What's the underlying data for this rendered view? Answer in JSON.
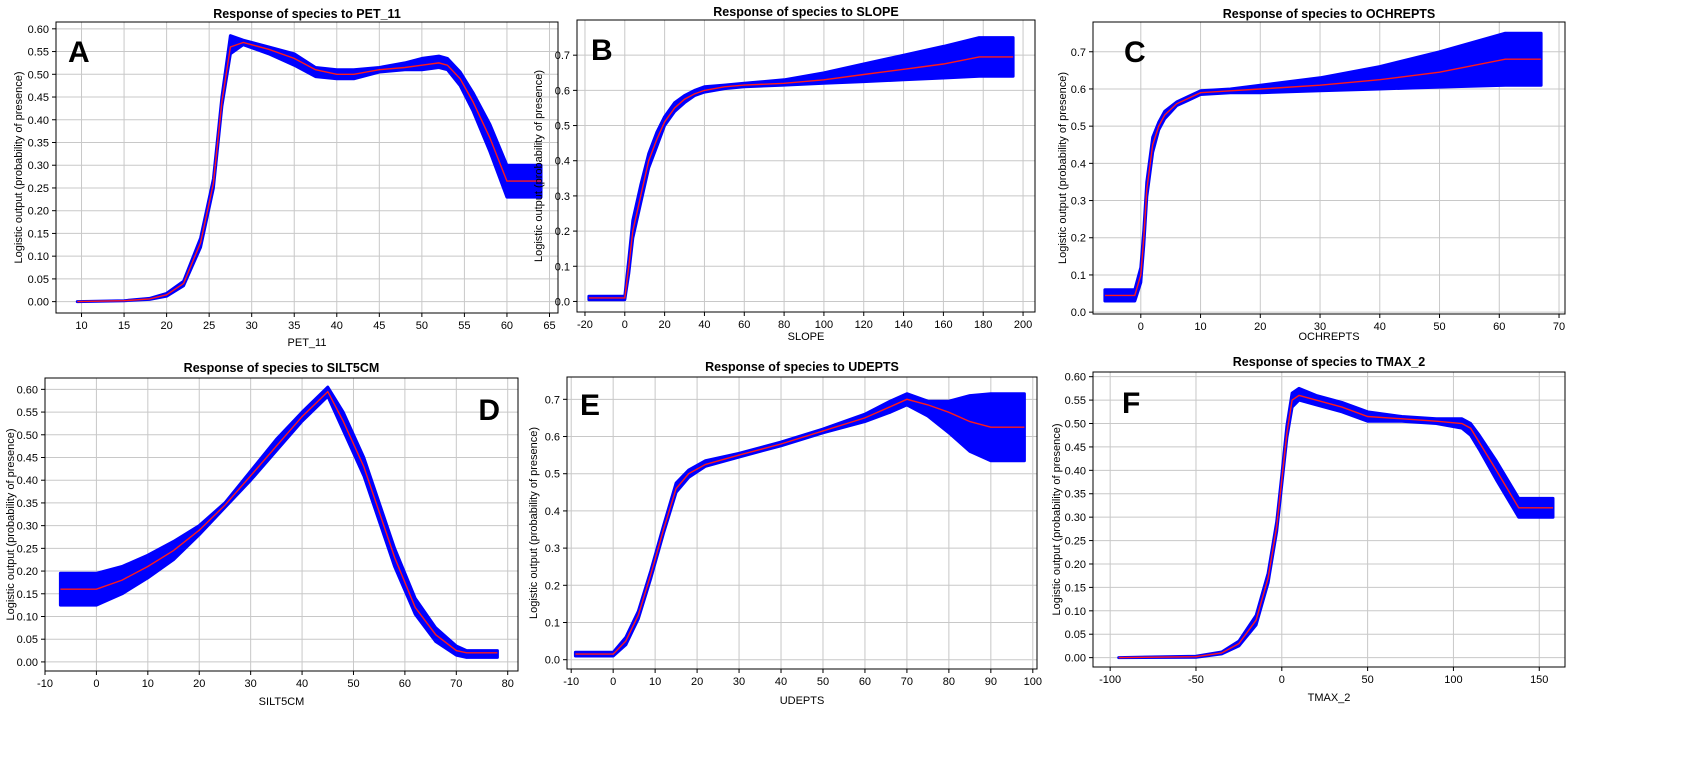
{
  "colors": {
    "band": "#0000ff",
    "mean": "#ff1a1a",
    "grid": "#c8c8c8",
    "frame": "#000000"
  },
  "chart_data": [
    {
      "type": "line",
      "letter": "A",
      "title": "Response of species to PET_11",
      "xlabel": "PET_11",
      "ylabel": "Logistic output (probability of presence)",
      "xlim": [
        7,
        66
      ],
      "ylim": [
        -0.025,
        0.615
      ],
      "xticks": [
        10,
        15,
        20,
        25,
        30,
        35,
        40,
        45,
        50,
        55,
        60,
        65
      ],
      "yticks": [
        0.0,
        0.05,
        0.1,
        0.15,
        0.2,
        0.25,
        0.3,
        0.35,
        0.4,
        0.45,
        0.5,
        0.55,
        0.6
      ],
      "ytick_decimals": 2,
      "series": [
        {
          "x": [
            9.5,
            15,
            18,
            20,
            22,
            24,
            25.5,
            26.5,
            27.5,
            29,
            32,
            35,
            37.5,
            40,
            42,
            45,
            48,
            50,
            52,
            53,
            54.5,
            56,
            58,
            60,
            60.1,
            64
          ],
          "y": [
            0.0,
            0.002,
            0.006,
            0.015,
            0.04,
            0.13,
            0.26,
            0.44,
            0.56,
            0.57,
            0.555,
            0.535,
            0.51,
            0.5,
            0.5,
            0.51,
            0.515,
            0.52,
            0.525,
            0.52,
            0.49,
            0.44,
            0.36,
            0.265,
            0.265,
            0.265
          ],
          "lower": [
            0.0,
            0.002,
            0.005,
            0.012,
            0.035,
            0.12,
            0.25,
            0.43,
            0.545,
            0.565,
            0.545,
            0.52,
            0.495,
            0.49,
            0.49,
            0.505,
            0.51,
            0.51,
            0.515,
            0.51,
            0.475,
            0.42,
            0.33,
            0.23,
            0.23,
            0.23
          ],
          "upper": [
            0.0,
            0.002,
            0.007,
            0.018,
            0.045,
            0.14,
            0.27,
            0.45,
            0.585,
            0.575,
            0.56,
            0.545,
            0.515,
            0.51,
            0.51,
            0.515,
            0.525,
            0.535,
            0.54,
            0.535,
            0.505,
            0.46,
            0.39,
            0.3,
            0.3,
            0.3
          ]
        }
      ]
    },
    {
      "type": "line",
      "letter": "B",
      "title": "Response of species to SLOPE",
      "xlabel": "SLOPE",
      "ylabel": "Logistic output (probability of presence)",
      "xlim": [
        -24,
        206
      ],
      "ylim": [
        -0.03,
        0.8
      ],
      "xticks": [
        -20,
        0,
        20,
        40,
        60,
        80,
        100,
        120,
        140,
        160,
        180,
        200
      ],
      "yticks": [
        0.0,
        0.1,
        0.2,
        0.3,
        0.4,
        0.5,
        0.6,
        0.7
      ],
      "ytick_decimals": 1,
      "series": [
        {
          "x": [
            -18,
            0,
            2,
            4,
            8,
            12,
            16,
            20,
            25,
            30,
            35,
            40,
            50,
            60,
            80,
            100,
            120,
            140,
            160,
            178,
            195
          ],
          "y": [
            0.01,
            0.01,
            0.1,
            0.2,
            0.3,
            0.4,
            0.46,
            0.51,
            0.55,
            0.575,
            0.59,
            0.6,
            0.61,
            0.615,
            0.62,
            0.63,
            0.645,
            0.66,
            0.675,
            0.695,
            0.695
          ],
          "lower": [
            0.005,
            0.005,
            0.08,
            0.18,
            0.28,
            0.38,
            0.44,
            0.5,
            0.54,
            0.565,
            0.585,
            0.595,
            0.605,
            0.61,
            0.615,
            0.62,
            0.625,
            0.63,
            0.635,
            0.64,
            0.64
          ],
          "upper": [
            0.015,
            0.015,
            0.12,
            0.23,
            0.33,
            0.42,
            0.48,
            0.525,
            0.565,
            0.585,
            0.6,
            0.61,
            0.615,
            0.62,
            0.63,
            0.65,
            0.675,
            0.7,
            0.725,
            0.75,
            0.75
          ]
        }
      ]
    },
    {
      "type": "line",
      "letter": "C",
      "title": "Response of species to OCHREPTS",
      "xlabel": "OCHREPTS",
      "ylabel": "Logistic output (probability of presence)",
      "xlim": [
        -8,
        71
      ],
      "ylim": [
        -0.005,
        0.78
      ],
      "xticks": [
        0,
        10,
        20,
        30,
        40,
        50,
        60,
        70
      ],
      "yticks": [
        0.0,
        0.1,
        0.2,
        0.3,
        0.4,
        0.5,
        0.6,
        0.7
      ],
      "ytick_decimals": 1,
      "series": [
        {
          "x": [
            -6,
            -1,
            0,
            0.5,
            1,
            2,
            3,
            4,
            6,
            8,
            10,
            15,
            20,
            30,
            40,
            50,
            61,
            67
          ],
          "y": [
            0.045,
            0.045,
            0.1,
            0.2,
            0.33,
            0.45,
            0.5,
            0.53,
            0.56,
            0.575,
            0.59,
            0.595,
            0.6,
            0.61,
            0.625,
            0.645,
            0.68,
            0.68
          ],
          "lower": [
            0.03,
            0.03,
            0.08,
            0.18,
            0.31,
            0.43,
            0.49,
            0.52,
            0.555,
            0.57,
            0.585,
            0.59,
            0.59,
            0.595,
            0.6,
            0.605,
            0.61,
            0.61
          ],
          "upper": [
            0.06,
            0.06,
            0.12,
            0.22,
            0.35,
            0.47,
            0.51,
            0.54,
            0.565,
            0.58,
            0.595,
            0.6,
            0.61,
            0.63,
            0.66,
            0.7,
            0.75,
            0.75
          ]
        }
      ]
    },
    {
      "type": "line",
      "letter": "D",
      "title": "Response of species to SILT5CM",
      "xlabel": "SILT5CM",
      "ylabel": "Logistic output (probability of presence)",
      "xlim": [
        -10,
        82
      ],
      "ylim": [
        -0.02,
        0.625
      ],
      "xticks": [
        -10,
        0,
        10,
        20,
        30,
        40,
        50,
        60,
        70,
        80
      ],
      "yticks": [
        0.0,
        0.05,
        0.1,
        0.15,
        0.2,
        0.25,
        0.3,
        0.35,
        0.4,
        0.45,
        0.5,
        0.55,
        0.6
      ],
      "ytick_decimals": 2,
      "series": [
        {
          "x": [
            -7,
            0,
            5,
            10,
            15,
            20,
            25,
            30,
            35,
            40,
            45,
            48,
            52,
            55,
            58,
            62,
            66,
            70,
            72,
            78
          ],
          "y": [
            0.16,
            0.16,
            0.18,
            0.21,
            0.245,
            0.29,
            0.345,
            0.41,
            0.475,
            0.54,
            0.595,
            0.53,
            0.43,
            0.33,
            0.23,
            0.12,
            0.06,
            0.025,
            0.02,
            0.02
          ],
          "lower": [
            0.125,
            0.125,
            0.15,
            0.185,
            0.225,
            0.28,
            0.34,
            0.4,
            0.465,
            0.53,
            0.585,
            0.51,
            0.41,
            0.31,
            0.21,
            0.105,
            0.045,
            0.015,
            0.01,
            0.01
          ],
          "upper": [
            0.195,
            0.195,
            0.21,
            0.235,
            0.265,
            0.3,
            0.35,
            0.42,
            0.49,
            0.55,
            0.605,
            0.55,
            0.45,
            0.35,
            0.25,
            0.14,
            0.075,
            0.035,
            0.025,
            0.025
          ]
        }
      ]
    },
    {
      "type": "line",
      "letter": "E",
      "title": "Response of species to UDEPTS",
      "xlabel": "UDEPTS",
      "ylabel": "Logistic output (probability of presence)",
      "xlim": [
        -11,
        101
      ],
      "ylim": [
        -0.025,
        0.76
      ],
      "xticks": [
        -10,
        0,
        10,
        20,
        30,
        40,
        50,
        60,
        70,
        80,
        90,
        100
      ],
      "yticks": [
        0.0,
        0.1,
        0.2,
        0.3,
        0.4,
        0.5,
        0.6,
        0.7
      ],
      "ytick_decimals": 1,
      "series": [
        {
          "x": [
            -9,
            0,
            3,
            6,
            9,
            12,
            15,
            18,
            22,
            30,
            40,
            50,
            60,
            66,
            70,
            75,
            80,
            85,
            90,
            98
          ],
          "y": [
            0.015,
            0.015,
            0.05,
            0.12,
            0.23,
            0.35,
            0.46,
            0.5,
            0.525,
            0.55,
            0.58,
            0.615,
            0.65,
            0.68,
            0.7,
            0.685,
            0.665,
            0.64,
            0.625,
            0.625
          ],
          "lower": [
            0.01,
            0.01,
            0.04,
            0.11,
            0.22,
            0.34,
            0.45,
            0.49,
            0.52,
            0.545,
            0.575,
            0.61,
            0.64,
            0.665,
            0.685,
            0.655,
            0.61,
            0.56,
            0.535,
            0.535
          ],
          "upper": [
            0.02,
            0.02,
            0.06,
            0.13,
            0.24,
            0.36,
            0.475,
            0.51,
            0.535,
            0.555,
            0.585,
            0.62,
            0.66,
            0.695,
            0.715,
            0.695,
            0.695,
            0.71,
            0.715,
            0.715
          ]
        }
      ]
    },
    {
      "type": "line",
      "letter": "F",
      "title": "Response of species to TMAX_2",
      "xlabel": "TMAX_2",
      "ylabel": "Logistic output (probability of presence)",
      "xlim": [
        -110,
        165
      ],
      "ylim": [
        -0.02,
        0.61
      ],
      "xticks": [
        -100,
        -50,
        0,
        50,
        100,
        150
      ],
      "yticks": [
        0.0,
        0.05,
        0.1,
        0.15,
        0.2,
        0.25,
        0.3,
        0.35,
        0.4,
        0.45,
        0.5,
        0.55,
        0.6
      ],
      "ytick_decimals": 2,
      "series": [
        {
          "x": [
            -95,
            -50,
            -35,
            -25,
            -15,
            -8,
            -3,
            0,
            3,
            6,
            10,
            20,
            35,
            50,
            70,
            90,
            105,
            110,
            115,
            125,
            138,
            158
          ],
          "y": [
            0.0,
            0.002,
            0.01,
            0.03,
            0.08,
            0.17,
            0.28,
            0.38,
            0.48,
            0.55,
            0.56,
            0.55,
            0.535,
            0.515,
            0.51,
            0.505,
            0.5,
            0.49,
            0.46,
            0.4,
            0.32,
            0.32
          ],
          "lower": [
            0.0,
            0.001,
            0.008,
            0.025,
            0.07,
            0.16,
            0.27,
            0.37,
            0.47,
            0.535,
            0.55,
            0.54,
            0.525,
            0.505,
            0.505,
            0.5,
            0.49,
            0.475,
            0.445,
            0.38,
            0.3,
            0.3
          ],
          "upper": [
            0.0,
            0.003,
            0.012,
            0.035,
            0.09,
            0.18,
            0.29,
            0.39,
            0.495,
            0.565,
            0.575,
            0.56,
            0.545,
            0.525,
            0.515,
            0.51,
            0.51,
            0.5,
            0.475,
            0.42,
            0.34,
            0.34
          ]
        }
      ]
    }
  ]
}
